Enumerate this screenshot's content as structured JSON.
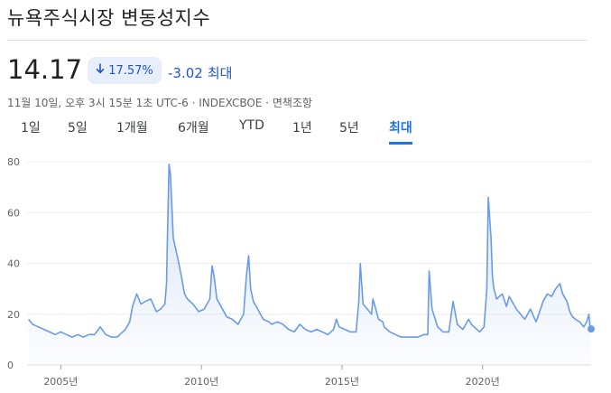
{
  "header": {
    "title": "뉴욕주식시장 변동성지수",
    "price": "14.17",
    "change_pct": "17.57%",
    "change_abs": "-3.02",
    "change_period": "최대",
    "meta": "11월 10일, 오후 3시 15분 1초 UTC-6 · INDEXCBOE · 면책조항"
  },
  "tabs": [
    {
      "label": "1일"
    },
    {
      "label": "5일"
    },
    {
      "label": "1개월"
    },
    {
      "label": "6개월"
    },
    {
      "label": "YTD"
    },
    {
      "label": "1년"
    },
    {
      "label": "5년"
    },
    {
      "label": "최대",
      "active": true
    }
  ],
  "colors": {
    "accent": "#1a73e8",
    "line": "#6b9be6",
    "area": "#e8f0fe",
    "badge_bg": "#e8eefc",
    "negative": "#1f57c8"
  },
  "icons": {
    "change_arrow": "arrow-down-icon"
  },
  "chart_data": {
    "type": "area",
    "x_unit": "year",
    "xlim": [
      2003.8,
      2023.86
    ],
    "ylim": [
      0,
      80
    ],
    "yticks": [
      0,
      20,
      40,
      60,
      80
    ],
    "xticks": [
      {
        "value": 2005,
        "label": "2005년"
      },
      {
        "value": 2010,
        "label": "2010년"
      },
      {
        "value": 2015,
        "label": "2015년"
      },
      {
        "value": 2020,
        "label": "2020년"
      }
    ],
    "grid": "horizontal",
    "series": [
      {
        "x": [
          2003.85,
          2004.0,
          2004.2,
          2004.4,
          2004.6,
          2004.8,
          2005.0,
          2005.2,
          2005.4,
          2005.6,
          2005.8,
          2006.0,
          2006.2,
          2006.4,
          2006.6,
          2006.8,
          2007.0,
          2007.1,
          2007.3,
          2007.45,
          2007.55,
          2007.7,
          2007.85,
          2008.0,
          2008.2,
          2008.4,
          2008.55,
          2008.7,
          2008.76,
          2008.8,
          2008.85,
          2008.9,
          2008.95,
          2009.0,
          2009.1,
          2009.2,
          2009.3,
          2009.4,
          2009.5,
          2009.7,
          2009.9,
          2010.1,
          2010.3,
          2010.38,
          2010.45,
          2010.55,
          2010.7,
          2010.9,
          2011.1,
          2011.3,
          2011.5,
          2011.6,
          2011.68,
          2011.75,
          2011.85,
          2012.0,
          2012.2,
          2012.4,
          2012.5,
          2012.7,
          2012.9,
          2013.1,
          2013.3,
          2013.5,
          2013.7,
          2013.9,
          2014.1,
          2014.3,
          2014.5,
          2014.7,
          2014.8,
          2014.9,
          2015.1,
          2015.3,
          2015.5,
          2015.6,
          2015.65,
          2015.75,
          2015.9,
          2016.05,
          2016.1,
          2016.3,
          2016.45,
          2016.5,
          2016.7,
          2016.9,
          2017.1,
          2017.3,
          2017.5,
          2017.7,
          2017.9,
          2018.05,
          2018.1,
          2018.2,
          2018.4,
          2018.6,
          2018.8,
          2018.95,
          2019.0,
          2019.1,
          2019.3,
          2019.5,
          2019.6,
          2019.7,
          2019.9,
          2020.05,
          2020.15,
          2020.2,
          2020.3,
          2020.35,
          2020.4,
          2020.5,
          2020.7,
          2020.85,
          2020.95,
          2021.1,
          2021.2,
          2021.35,
          2021.5,
          2021.7,
          2021.9,
          2022.0,
          2022.15,
          2022.3,
          2022.45,
          2022.6,
          2022.75,
          2022.85,
          2023.0,
          2023.1,
          2023.2,
          2023.3,
          2023.45,
          2023.6,
          2023.7,
          2023.78,
          2023.82,
          2023.86
        ],
        "values": [
          18,
          16,
          15,
          14,
          13,
          12,
          13,
          12,
          11,
          12,
          11,
          12,
          12,
          15,
          12,
          11,
          11,
          12,
          14,
          17,
          23,
          28,
          24,
          25,
          26,
          21,
          22,
          24,
          32,
          55,
          79,
          75,
          62,
          50,
          45,
          40,
          34,
          28,
          26,
          24,
          21,
          22,
          26,
          39,
          35,
          26,
          23,
          19,
          18,
          16,
          20,
          35,
          43,
          30,
          25,
          22,
          18,
          17,
          16,
          17,
          16,
          14,
          13,
          16,
          14,
          13,
          14,
          13,
          12,
          14,
          18,
          15,
          14,
          13,
          13,
          25,
          40,
          24,
          22,
          20,
          26,
          18,
          17,
          15,
          13,
          12,
          11,
          11,
          11,
          11,
          12,
          12,
          37,
          22,
          15,
          13,
          13,
          25,
          22,
          16,
          14,
          18,
          16,
          15,
          13,
          15,
          30,
          66,
          50,
          35,
          30,
          26,
          28,
          23,
          27,
          24,
          22,
          20,
          18,
          22,
          17,
          20,
          25,
          28,
          27,
          30,
          32,
          28,
          25,
          21,
          19,
          18,
          17,
          15,
          17,
          20,
          15,
          14.17
        ]
      }
    ]
  }
}
